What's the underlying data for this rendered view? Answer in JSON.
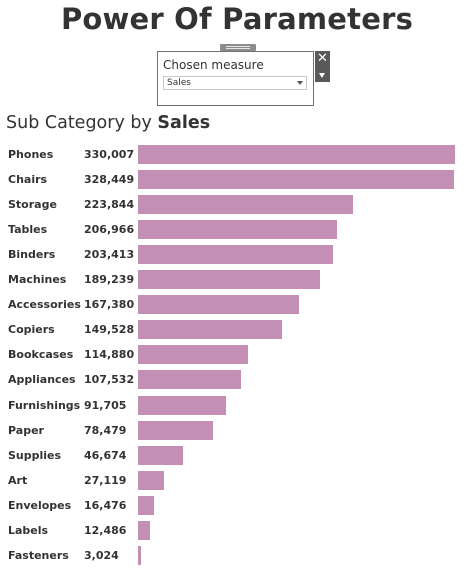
{
  "page": {
    "title": "Power Of Parameters"
  },
  "parameter": {
    "label": "Chosen measure",
    "selected": "Sales",
    "close_icon": "close-icon",
    "menu_icon": "caret-down-icon"
  },
  "chart_title": {
    "prefix": "Sub Category by",
    "measure": "Sales"
  },
  "chart_data": {
    "type": "bar",
    "orientation": "horizontal",
    "title": "Sub Category by Sales",
    "bar_color": "#c38fb5",
    "categories": [
      "Phones",
      "Chairs",
      "Storage",
      "Tables",
      "Binders",
      "Machines",
      "Accessories",
      "Copiers",
      "Bookcases",
      "Appliances",
      "Furnishings",
      "Paper",
      "Supplies",
      "Art",
      "Envelopes",
      "Labels",
      "Fasteners"
    ],
    "values": [
      330007,
      328449,
      223844,
      206966,
      203413,
      189239,
      167380,
      149528,
      114880,
      107532,
      91705,
      78479,
      46674,
      27119,
      16476,
      12486,
      3024
    ],
    "value_labels": [
      "330,007",
      "328,449",
      "223,844",
      "206,966",
      "203,413",
      "189,239",
      "167,380",
      "149,528",
      "114,880",
      "107,532",
      "91,705",
      "78,479",
      "46,674",
      "27,119",
      "16,476",
      "12,486",
      "3,024"
    ],
    "xlim": [
      0,
      330007
    ]
  }
}
